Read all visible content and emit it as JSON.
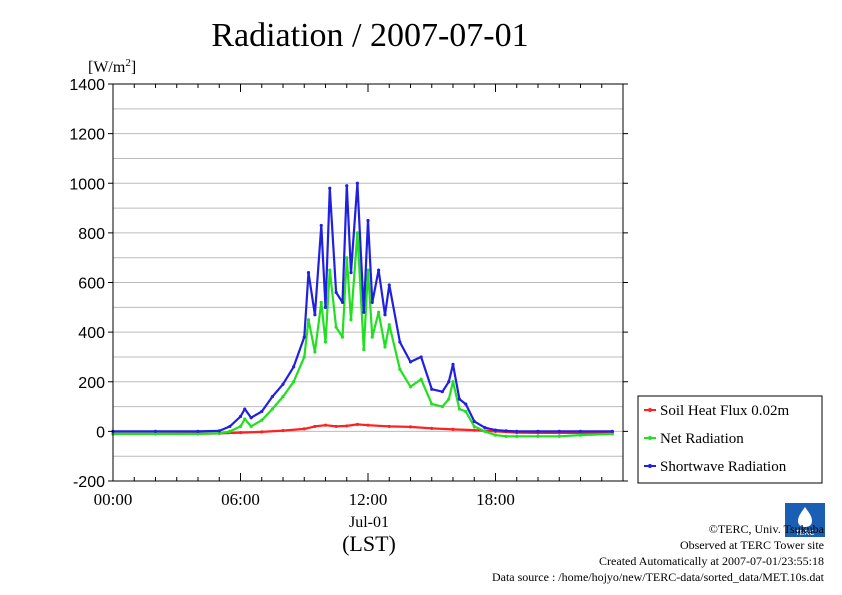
{
  "chart_data": {
    "type": "line",
    "title": "Radiation / 2007-07-01",
    "ylabel": "[W/m²]",
    "ylabel_base": "[W/m",
    "ylabel_sup": "2",
    "ylabel_end": "]",
    "xlabel_date": "Jul-01",
    "xlabel_unit": "(LST)",
    "ylim": [
      -200,
      1400
    ],
    "xlim": [
      0,
      24
    ],
    "yticks": [
      -200,
      0,
      200,
      400,
      600,
      800,
      1000,
      1200,
      1400
    ],
    "xticks": [
      0,
      6,
      12,
      18
    ],
    "xtick_labels": [
      "00:00",
      "06:00",
      "12:00",
      "18:00"
    ],
    "grid": true,
    "legend_position": "right",
    "series": [
      {
        "name": "Soil Heat Flux 0.02m",
        "color": "#ff2020",
        "x": [
          0,
          2,
          4,
          5,
          6,
          7,
          8,
          9,
          9.5,
          10,
          10.5,
          11,
          11.5,
          12,
          13,
          14,
          15,
          16,
          17,
          18,
          19,
          20,
          21,
          22,
          23.5
        ],
        "y": [
          -10,
          -10,
          -9,
          -8,
          -5,
          -2,
          3,
          10,
          20,
          25,
          20,
          22,
          28,
          25,
          20,
          18,
          12,
          8,
          5,
          0,
          -5,
          -6,
          -6,
          -6,
          -5
        ]
      },
      {
        "name": "Net Radiation",
        "color": "#20e020",
        "x": [
          0,
          2,
          4,
          5,
          5.5,
          6,
          6.2,
          6.5,
          7,
          7.5,
          8,
          8.5,
          9,
          9.2,
          9.5,
          9.8,
          10,
          10.2,
          10.5,
          10.8,
          11,
          11.2,
          11.5,
          11.8,
          12,
          12.2,
          12.5,
          12.8,
          13,
          13.5,
          14,
          14.5,
          15,
          15.5,
          15.8,
          16,
          16.3,
          16.6,
          17,
          17.5,
          18,
          18.5,
          19,
          20,
          21,
          22,
          23.5
        ],
        "y": [
          -10,
          -10,
          -10,
          -8,
          0,
          20,
          50,
          20,
          45,
          90,
          140,
          200,
          300,
          450,
          320,
          520,
          360,
          650,
          420,
          380,
          700,
          450,
          800,
          330,
          650,
          380,
          480,
          340,
          430,
          250,
          180,
          210,
          110,
          100,
          130,
          200,
          90,
          80,
          20,
          0,
          -15,
          -20,
          -20,
          -20,
          -20,
          -15,
          -10
        ]
      },
      {
        "name": "Shortwave Radiation",
        "color": "#2020e0",
        "x": [
          0,
          2,
          4,
          5,
          5.5,
          6,
          6.2,
          6.5,
          7,
          7.5,
          8,
          8.5,
          9,
          9.2,
          9.5,
          9.8,
          10,
          10.2,
          10.5,
          10.8,
          11,
          11.2,
          11.5,
          11.8,
          12,
          12.2,
          12.5,
          12.8,
          13,
          13.5,
          14,
          14.5,
          15,
          15.5,
          15.8,
          16,
          16.3,
          16.6,
          17,
          17.5,
          18,
          18.5,
          19,
          20,
          21,
          22,
          23.5
        ],
        "y": [
          0,
          0,
          0,
          2,
          20,
          60,
          90,
          55,
          80,
          140,
          190,
          260,
          380,
          640,
          470,
          830,
          500,
          980,
          560,
          520,
          990,
          640,
          1000,
          480,
          850,
          520,
          650,
          470,
          590,
          360,
          280,
          300,
          170,
          160,
          200,
          270,
          130,
          110,
          40,
          15,
          5,
          2,
          0,
          0,
          0,
          0,
          0
        ]
      }
    ]
  },
  "footer": {
    "copyright": "©TERC, Univ. Tsukuba",
    "observed": "Observed at TERC Tower site",
    "created": "Created Automatically at 2007-07-01/23:55:18",
    "source": "Data source : /home/hojyo/new/TERC-data/sorted_data/MET.10s.dat"
  },
  "logo_text": "TERC",
  "colors": {
    "axis": "#000000",
    "grid": "#bbbbbb",
    "background": "#ffffff"
  }
}
